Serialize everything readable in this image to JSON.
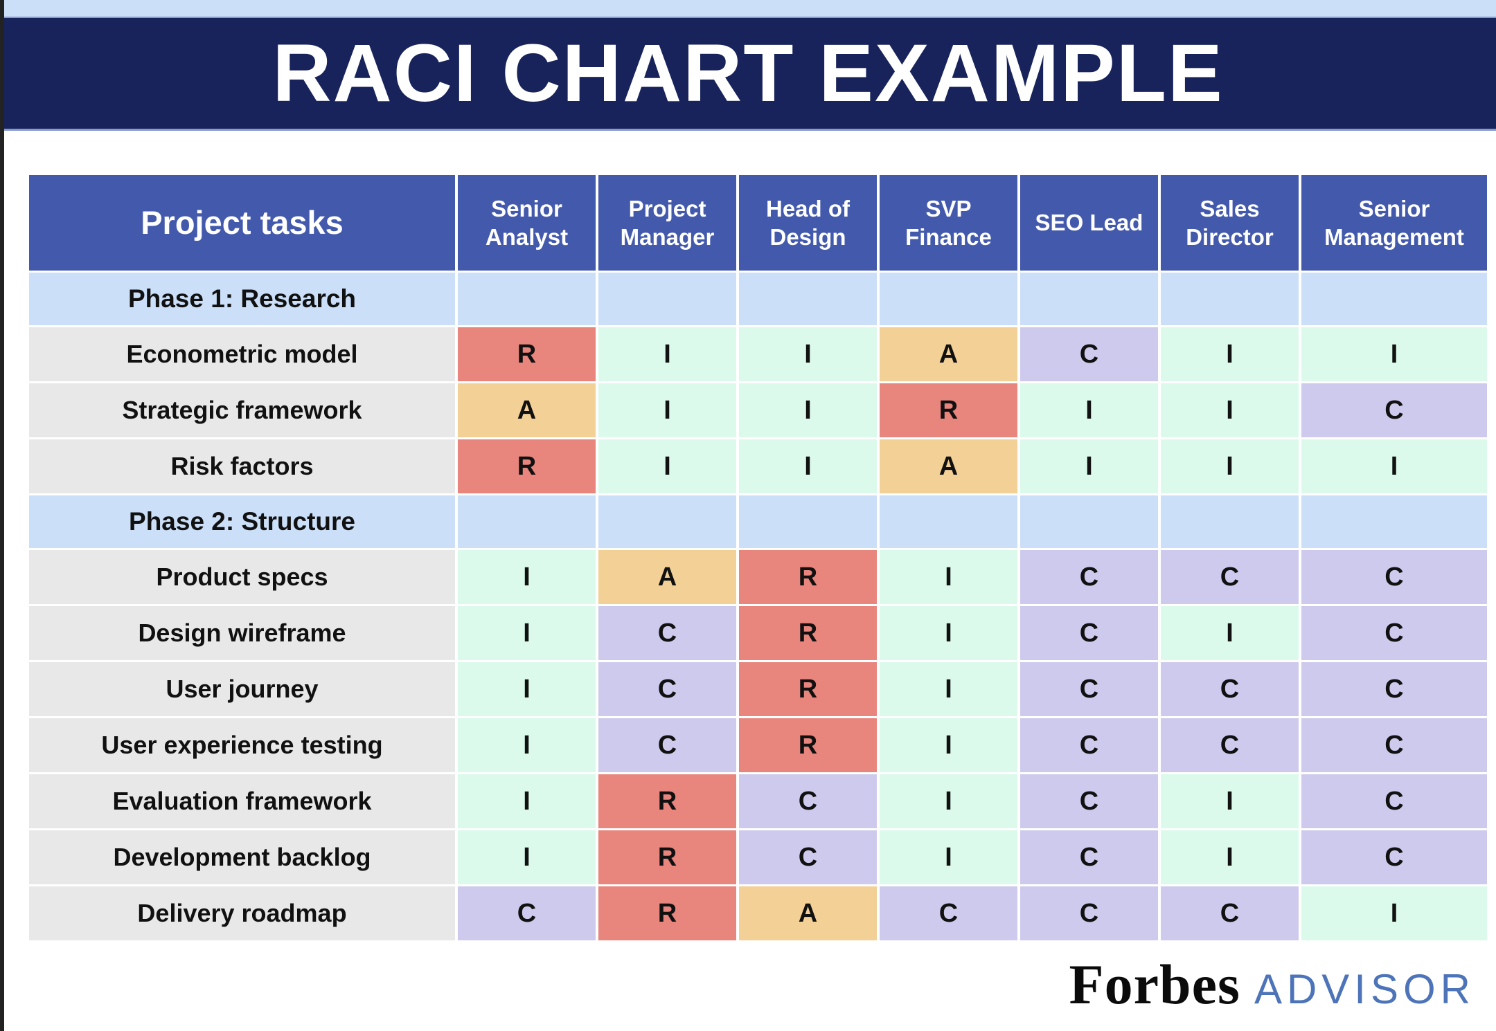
{
  "banner": {
    "title": "RACI CHART EXAMPLE"
  },
  "colors": {
    "top_strip": "#CBDFF8",
    "banner_bg": "#17235A",
    "header_bg": "#4359AC",
    "section_row_bg": "#CBDFF8",
    "task_cell_bg": "#E9E8E8",
    "responsible_red": "#E8857D",
    "accountable_orange": "#F3D096",
    "consulted_purple": "#CECAED",
    "informed_green": "#DBFAEB",
    "advisor_blue": "#4D74B8"
  },
  "table": {
    "task_column_header": "Project tasks",
    "roles": [
      "Senior Analyst",
      "Project Manager",
      "Head of Design",
      "SVP Finance",
      "SEO Lead",
      "Sales Director",
      "Senior Management"
    ],
    "sections": [
      {
        "label": "Phase 1: Research",
        "rows": [
          {
            "task": "Econometric model",
            "assignments": [
              "R",
              "I",
              "I",
              "A",
              "C",
              "I",
              "I"
            ]
          },
          {
            "task": "Strategic framework",
            "assignments": [
              "A",
              "I",
              "I",
              "R",
              "I",
              "I",
              "C"
            ]
          },
          {
            "task": "Risk factors",
            "assignments": [
              "R",
              "I",
              "I",
              "A",
              "I",
              "I",
              "I"
            ]
          }
        ]
      },
      {
        "label": "Phase 2: Structure",
        "rows": [
          {
            "task": "Product specs",
            "assignments": [
              "I",
              "A",
              "R",
              "I",
              "C",
              "C",
              "C"
            ]
          },
          {
            "task": "Design wireframe",
            "assignments": [
              "I",
              "C",
              "R",
              "I",
              "C",
              "I",
              "C"
            ]
          },
          {
            "task": "User journey",
            "assignments": [
              "I",
              "C",
              "R",
              "I",
              "C",
              "C",
              "C"
            ]
          },
          {
            "task": "User experience testing",
            "assignments": [
              "I",
              "C",
              "R",
              "I",
              "C",
              "C",
              "C"
            ]
          },
          {
            "task": "Evaluation framework",
            "assignments": [
              "I",
              "R",
              "C",
              "I",
              "C",
              "I",
              "C"
            ]
          },
          {
            "task": "Development backlog",
            "assignments": [
              "I",
              "R",
              "C",
              "I",
              "C",
              "I",
              "C"
            ]
          },
          {
            "task": "Delivery roadmap",
            "assignments": [
              "C",
              "R",
              "A",
              "C",
              "C",
              "C",
              "I"
            ]
          }
        ]
      }
    ]
  },
  "footer": {
    "brand": "Forbes",
    "sub_brand": "ADVISOR"
  }
}
